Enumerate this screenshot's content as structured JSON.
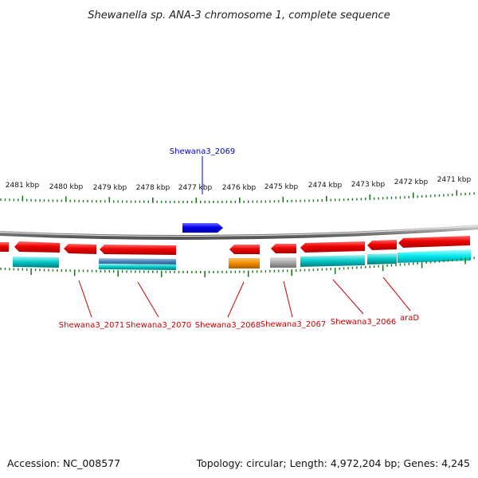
{
  "title": "Shewanella sp. ANA-3 chromosome 1, complete sequence",
  "footer": {
    "accession": "Accession: NC_008577",
    "summary": "Topology: circular; Length: 4,972,204 bp; Genes: 4,245"
  },
  "colors": {
    "forward_gene": "#0000ee",
    "reverse_gene": "#ee0000",
    "cds": "#00c8c8",
    "cds_alt": "#4d86b8",
    "orange_feature": "#f08c00",
    "gray_feature": "#a8a8a8",
    "tick": "#1a7a1a",
    "backbone": "#888888",
    "label_forward": "#0000cc",
    "label_reverse": "#cc0000"
  },
  "scale_labels": [
    "2481 kbp",
    "2480 kbp",
    "2479 kbp",
    "2478 kbp",
    "2477 kbp",
    "2476 kbp",
    "2475 kbp",
    "2474 kbp",
    "2473 kbp",
    "2472 kbp",
    "2471 kbp"
  ],
  "gene_labels": {
    "forward": [
      "Shewana3_2069"
    ],
    "reverse": [
      "Shewana3_2071",
      "Shewana3_2070",
      "Shewana3_2068",
      "Shewana3_2067",
      "Shewana3_2066",
      "araD"
    ]
  }
}
